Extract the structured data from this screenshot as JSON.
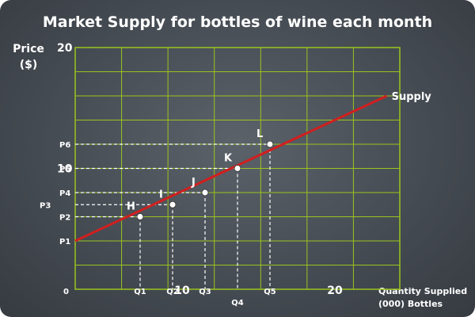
{
  "chart_data": {
    "type": "line",
    "title": "Market Supply for bottles of wine each month",
    "ylabel_line1": "Price",
    "ylabel_line2": "($)",
    "xlabel_line1": "Quantity Supplied",
    "xlabel_line2": "(000) Bottles",
    "xlim": [
      0,
      25
    ],
    "ylim": [
      0,
      20
    ],
    "grid": true,
    "x_ticks": [
      {
        "value": 0,
        "label": "0"
      },
      {
        "value": 10,
        "label": "10"
      },
      {
        "value": 20,
        "label": "20"
      }
    ],
    "y_ticks": [
      {
        "value": 10,
        "label": "10"
      },
      {
        "value": 20,
        "label": "20"
      }
    ],
    "x_markers": [
      {
        "value": 5,
        "label": "Q1"
      },
      {
        "value": 7.5,
        "label": "Q2"
      },
      {
        "value": 10,
        "label": "Q3"
      },
      {
        "value": 12.5,
        "label": "Q4"
      },
      {
        "value": 15,
        "label": "Q5"
      }
    ],
    "y_markers": [
      {
        "value": 4,
        "label": "P1"
      },
      {
        "value": 6,
        "label": "P2"
      },
      {
        "value": 7,
        "label": "P3"
      },
      {
        "value": 8,
        "label": "P4"
      },
      {
        "value": 10,
        "label": "P5"
      },
      {
        "value": 12,
        "label": "P6"
      }
    ],
    "series": [
      {
        "name": "Supply",
        "color": "#d11f1f",
        "x": [
          0,
          24
        ],
        "y": [
          4,
          16
        ]
      }
    ],
    "points": [
      {
        "label": "H",
        "x": 5,
        "y": 6
      },
      {
        "label": "I",
        "x": 7.5,
        "y": 7
      },
      {
        "label": "J",
        "x": 10,
        "y": 8
      },
      {
        "label": "K",
        "x": 12.5,
        "y": 10
      },
      {
        "label": "L",
        "x": 15,
        "y": 12
      }
    ]
  },
  "colors": {
    "grid": "#9ac41f",
    "curve": "#d11f1f",
    "point": "#ffffff",
    "text": "#ffffff"
  }
}
